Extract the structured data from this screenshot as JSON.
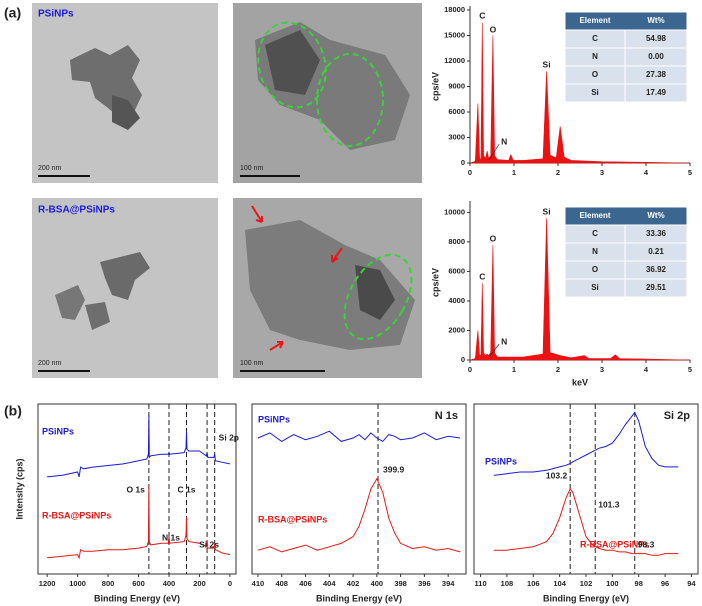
{
  "panel_labels": [
    "(a)",
    "(b)"
  ],
  "tem": [
    {
      "label": "PSiNPs",
      "scale_bars": [
        "200 nm",
        "100 nm"
      ]
    },
    {
      "label": "R-BSA@PSiNPs",
      "scale_bars": [
        "200 nm",
        "100 nm"
      ]
    }
  ],
  "chart_data": [
    {
      "type": "area",
      "ylabel": "cps/eV",
      "color": "#ee1111",
      "x": [
        0,
        0.12,
        0.18,
        0.22,
        0.25,
        0.28,
        0.31,
        0.35,
        0.39,
        0.42,
        0.47,
        0.52,
        0.56,
        0.62,
        0.88,
        0.93,
        0.98,
        1.2,
        1.66,
        1.74,
        1.82,
        1.96,
        2.05,
        2.14,
        2.3,
        3,
        4,
        5
      ],
      "values": [
        0,
        200,
        7000,
        300,
        600,
        16500,
        900,
        500,
        1400,
        600,
        800,
        15000,
        900,
        400,
        300,
        1000,
        300,
        300,
        500,
        10800,
        900,
        600,
        4300,
        700,
        300,
        150,
        80,
        0
      ],
      "xlim": [
        0,
        5
      ],
      "xticks": [
        0,
        1,
        2,
        3,
        4,
        5
      ],
      "ylim": [
        0,
        18000
      ],
      "yticks": [
        0,
        3000,
        6000,
        9000,
        12000,
        15000,
        18000
      ],
      "annotations": [
        {
          "text": "C",
          "x": 0.28
        },
        {
          "text": "O",
          "x": 0.52
        },
        {
          "text": "Si",
          "x": 1.74
        },
        {
          "text": "N",
          "x": 0.39
        }
      ],
      "table": {
        "columns": [
          "Element",
          "Wt%"
        ],
        "rows": [
          [
            "C",
            "54.98"
          ],
          [
            "N",
            "0.00"
          ],
          [
            "O",
            "27.38"
          ],
          [
            "Si",
            "17.49"
          ]
        ]
      }
    },
    {
      "type": "area",
      "ylabel": "cps/eV",
      "xlabel": "keV",
      "color": "#ee1111",
      "x": [
        0,
        0.12,
        0.18,
        0.22,
        0.25,
        0.28,
        0.31,
        0.35,
        0.39,
        0.42,
        0.47,
        0.52,
        0.56,
        0.62,
        0.93,
        1.2,
        1.66,
        1.74,
        1.82,
        2.05,
        2.3,
        2.6,
        2.7,
        3.2,
        3.3,
        3.4,
        4,
        5
      ],
      "values": [
        0,
        100,
        2000,
        200,
        400,
        5200,
        500,
        300,
        400,
        300,
        500,
        7800,
        500,
        200,
        200,
        200,
        400,
        9600,
        500,
        300,
        150,
        300,
        100,
        100,
        350,
        100,
        60,
        0
      ],
      "xlim": [
        0,
        5
      ],
      "xticks": [
        0,
        1,
        2,
        3,
        4,
        5
      ],
      "ylim": [
        0,
        10500
      ],
      "yticks": [
        0,
        2000,
        4000,
        6000,
        8000,
        10000
      ],
      "annotations": [
        {
          "text": "Si",
          "x": 1.74
        },
        {
          "text": "O",
          "x": 0.52
        },
        {
          "text": "C",
          "x": 0.28
        },
        {
          "text": "N",
          "x": 0.39
        }
      ],
      "table": {
        "columns": [
          "Element",
          "Wt%"
        ],
        "rows": [
          [
            "C",
            "33.36"
          ],
          [
            "N",
            "0.21"
          ],
          [
            "O",
            "36.92"
          ],
          [
            "Si",
            "29.51"
          ]
        ]
      }
    },
    {
      "type": "line",
      "xlabel": "Binding Energy (eV)",
      "ylabel": "Intensity (cps)",
      "x": [
        1200,
        1100,
        1000,
        990,
        980,
        960,
        900,
        800,
        700,
        600,
        545,
        535,
        532,
        529,
        520,
        450,
        405,
        400,
        395,
        300,
        288,
        285,
        282,
        270,
        200,
        155,
        150,
        145,
        105,
        100,
        95,
        50,
        0
      ],
      "series": [
        {
          "name": "PSiNPs",
          "color": "#1a1adb",
          "values": [
            60,
            61,
            63,
            60,
            66,
            65,
            66,
            67,
            68,
            70,
            71,
            74,
            98,
            72,
            73,
            74,
            74,
            75,
            74,
            75,
            78,
            88,
            77,
            76,
            76,
            73,
            75,
            72,
            72,
            74,
            70,
            69,
            68
          ]
        },
        {
          "name": "R-BSA@PSiNPs",
          "color": "#e81818",
          "values": [
            10,
            11,
            12,
            10,
            15,
            14,
            14,
            15,
            15,
            16,
            17,
            20,
            55,
            20,
            18,
            19,
            19,
            23,
            19,
            20,
            24,
            35,
            22,
            20,
            19,
            17,
            21,
            16,
            16,
            19,
            15,
            13,
            12
          ]
        }
      ],
      "xlim": [
        1260,
        -40
      ],
      "xticks": [
        1200,
        1000,
        800,
        600,
        400,
        200,
        0
      ],
      "ylim": [
        0,
        105
      ],
      "ref_lines": [
        532,
        400,
        285,
        150,
        100
      ],
      "annotations": [
        {
          "text": "O 1s",
          "x": 532
        },
        {
          "text": "N 1s",
          "x": 400
        },
        {
          "text": "C 1s",
          "x": 285
        },
        {
          "text": "Si 2s",
          "x": 150
        },
        {
          "text": "Si 2p",
          "x": 100
        }
      ]
    },
    {
      "type": "line",
      "title": "N 1s",
      "xlabel": "Binding Energy (eV)",
      "x": [
        410,
        409,
        408,
        407,
        406,
        405,
        404,
        403,
        402,
        401.5,
        401,
        400.5,
        400,
        399.5,
        399,
        398.5,
        398,
        397,
        396,
        395,
        394,
        393
      ],
      "series": [
        {
          "name": "PSiNPs",
          "color": "#1a1adb",
          "values": [
            80,
            83,
            78,
            82,
            79,
            81,
            84,
            78,
            80,
            82,
            79,
            83,
            80,
            78,
            82,
            81,
            79,
            80,
            83,
            79,
            81,
            80
          ]
        },
        {
          "name": "R-BSA@PSiNPs",
          "color": "#e81818",
          "values": [
            14,
            16,
            13,
            15,
            17,
            14,
            16,
            18,
            22,
            28,
            38,
            50,
            56,
            48,
            33,
            24,
            18,
            15,
            16,
            14,
            15,
            13
          ]
        }
      ],
      "xlim": [
        410.5,
        392.5
      ],
      "xticks": [
        410,
        408,
        406,
        404,
        402,
        400,
        398,
        396,
        394
      ],
      "ylim": [
        0,
        100
      ],
      "ref_lines": [
        399.9
      ],
      "annotations": [
        {
          "text": "399.9",
          "x": 399.9
        }
      ]
    },
    {
      "type": "line",
      "title": "Si 2p",
      "xlabel": "Binding Energy (eV)",
      "x": [
        109,
        108,
        107,
        106,
        105,
        104.5,
        104,
        103.5,
        103.2,
        103,
        102.5,
        102,
        101.5,
        101,
        100.5,
        100,
        99.5,
        99,
        98.5,
        98.3,
        98,
        97.5,
        97,
        96.5,
        96,
        95
      ],
      "series": [
        {
          "name": "PSiNPs",
          "color": "#1a1adb",
          "values": [
            58,
            59,
            60,
            60,
            61,
            62,
            63,
            64,
            65,
            66,
            68,
            70,
            72,
            74,
            75,
            77,
            82,
            88,
            93,
            95,
            90,
            75,
            68,
            64,
            63,
            63
          ]
        },
        {
          "name": "R-BSA@PSiNPs",
          "color": "#e81818",
          "values": [
            14,
            14,
            15,
            16,
            19,
            24,
            33,
            45,
            50,
            48,
            35,
            22,
            17,
            15,
            14,
            14,
            13,
            13,
            12,
            12,
            12,
            12,
            11,
            11,
            12,
            12
          ]
        }
      ],
      "xlim": [
        110.5,
        93.5
      ],
      "xticks": [
        110,
        108,
        106,
        104,
        102,
        100,
        98,
        96,
        94
      ],
      "ylim": [
        0,
        100
      ],
      "ref_lines": [
        103.2,
        101.3,
        98.3
      ],
      "annotations": [
        {
          "text": "103.2",
          "x": 103.2
        },
        {
          "text": "101.3",
          "x": 101.3
        },
        {
          "text": "98.3",
          "x": 98.3
        }
      ]
    }
  ]
}
